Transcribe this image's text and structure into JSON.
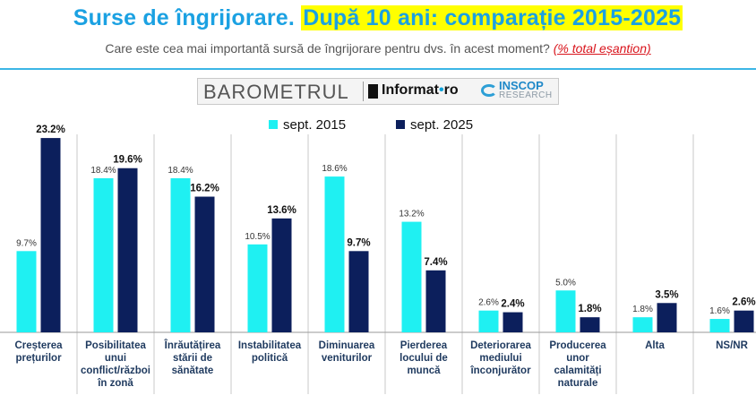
{
  "header": {
    "title_part1": "Surse de îngrijorare.",
    "title_part2": "După 10 ani: comparație 2015-2025",
    "subtitle": "Care este cea mai importantă sursă de îngrijorare pentru dvs. în acest moment?",
    "subtitle_note": "(% total eșantion)"
  },
  "banner": {
    "barometrul": "BAROMETRUL",
    "informat_a": "Informat",
    "informat_dot": "•",
    "informat_b": "ro",
    "inscop": "INSCOP",
    "research": "RESEARCH"
  },
  "colors": {
    "series_2015": "#1ff0f2",
    "series_2025": "#0c1f5c"
  },
  "chart_data": {
    "type": "bar",
    "title": "",
    "xlabel": "",
    "ylabel": "",
    "ylim": [
      0,
      25
    ],
    "grid": false,
    "legend_position": "top-center",
    "categories": [
      [
        "Creșterea",
        "prețurilor"
      ],
      [
        "Posibilitatea",
        "unui",
        "conflict/război",
        "în zonă"
      ],
      [
        "Înrăutățirea",
        "stării de",
        "sănătate"
      ],
      [
        "Instabilitatea",
        "politică"
      ],
      [
        "Diminuarea",
        "veniturilor"
      ],
      [
        "Pierderea",
        "locului de",
        "muncă"
      ],
      [
        "Deteriorarea",
        "mediului",
        "înconjurător"
      ],
      [
        "Producerea",
        "unor",
        "calamități",
        "naturale"
      ],
      [
        "Alta"
      ],
      [
        "NS/NR"
      ]
    ],
    "series": [
      {
        "name": "sept. 2015",
        "values": [
          9.7,
          18.4,
          18.4,
          10.5,
          18.6,
          13.2,
          2.6,
          5.0,
          1.8,
          1.6
        ],
        "labels": [
          "9.7%",
          "18.4%",
          "18.4%",
          "10.5%",
          "18.6%",
          "13.2%",
          "2.6%",
          "5.0%",
          "1.8%",
          "1.6%"
        ]
      },
      {
        "name": "sept. 2025",
        "values": [
          23.2,
          19.6,
          16.2,
          13.6,
          9.7,
          7.4,
          2.4,
          1.8,
          3.5,
          2.6
        ],
        "labels": [
          "23.2%",
          "19.6%",
          "16.2%",
          "13.6%",
          "9.7%",
          "7.4%",
          "2.4%",
          "1.8%",
          "3.5%",
          "2.6%"
        ]
      }
    ]
  }
}
